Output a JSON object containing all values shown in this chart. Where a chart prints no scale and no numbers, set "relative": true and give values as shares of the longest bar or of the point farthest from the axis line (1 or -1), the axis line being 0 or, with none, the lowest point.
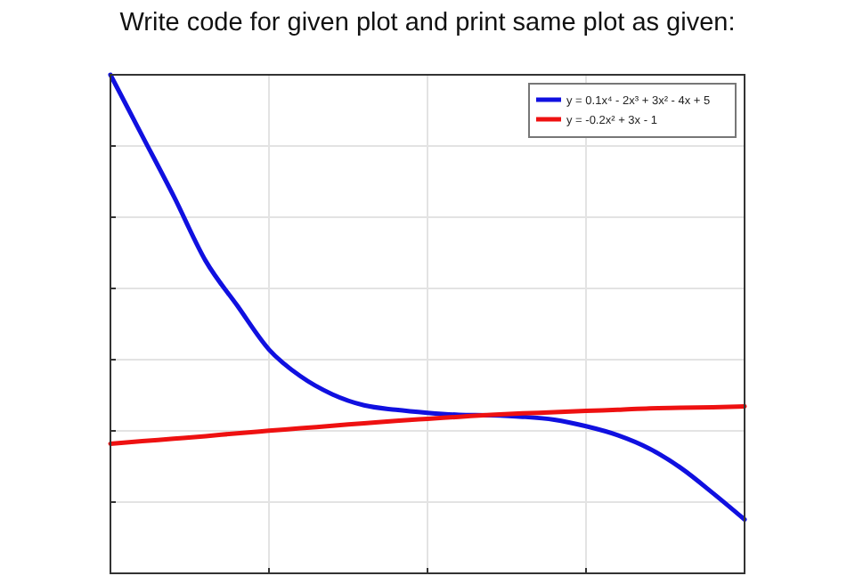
{
  "chart_data": {
    "type": "line",
    "title": "Write code for given plot and print same plot as given:",
    "relative": true,
    "grid": true,
    "legend": "top right",
    "marker": "none",
    "line_style": "solid",
    "categories": [
      null,
      null,
      null,
      null,
      null,
      null,
      null,
      null,
      null,
      null,
      null,
      null,
      null,
      null,
      null,
      null,
      null,
      null,
      null,
      null,
      null
    ],
    "series": [
      {
        "name": "y = 0.1x⁴ - 2x³ + 3x² - 4x + 5",
        "color": "#1010e0",
        "values": [
          1,
          0.878,
          0.756,
          0.627,
          0.537,
          0.449,
          0.395,
          0.359,
          0.337,
          0.328,
          0.322,
          0.318,
          0.317,
          0.314,
          0.308,
          0.295,
          0.277,
          0.25,
          0.211,
          0.161,
          0.108
        ]
      },
      {
        "name": "y = -0.2x² + 3x - 1",
        "color": "#ee1111",
        "values": [
          0.26,
          0.265,
          0.27,
          0.275,
          0.281,
          0.286,
          0.291,
          0.296,
          0.301,
          0.306,
          0.31,
          0.314,
          0.318,
          0.321,
          0.323,
          0.326,
          0.328,
          0.331,
          0.332,
          0.333,
          0.335
        ]
      }
    ]
  }
}
